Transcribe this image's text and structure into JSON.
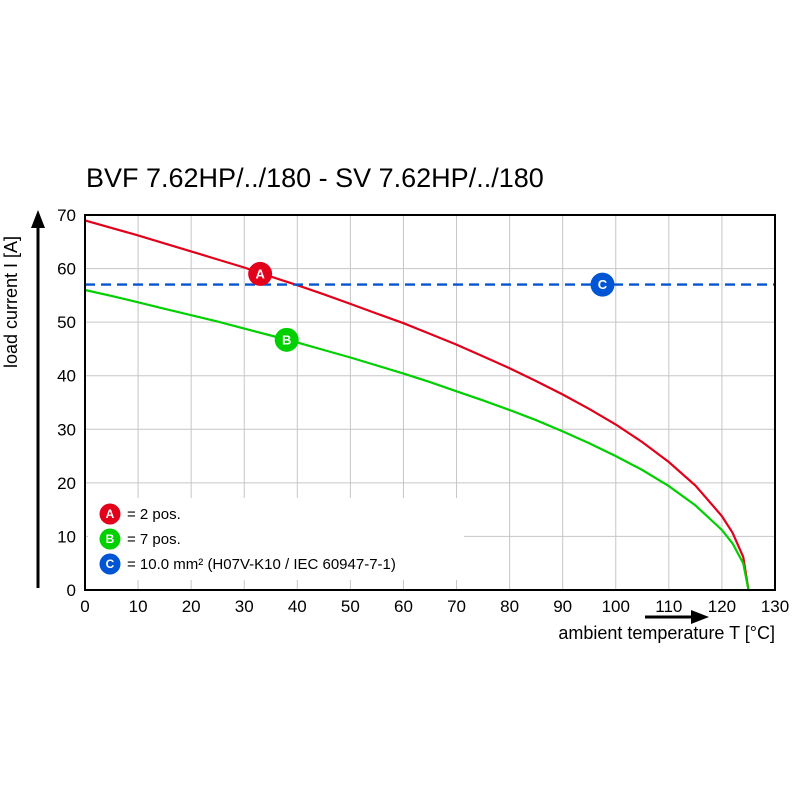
{
  "page": {
    "background": "#ffffff"
  },
  "chart_data": {
    "type": "line",
    "title": "BVF 7.62HP/../180 - SV 7.62HP/../180",
    "xlabel": "ambient temperature T [°C]",
    "ylabel": "load current I [A]",
    "xlim": [
      0,
      130
    ],
    "ylim": [
      0,
      70
    ],
    "xticks": [
      0,
      10,
      20,
      30,
      40,
      50,
      60,
      70,
      80,
      90,
      100,
      110,
      120,
      130
    ],
    "yticks": [
      0,
      10,
      20,
      30,
      40,
      50,
      60,
      70
    ],
    "grid": true,
    "legend_position": "lower-left",
    "colors": {
      "grid": "#c6c6c6",
      "frame": "#000000",
      "text": "#000000",
      "red": "#e2001a",
      "green": "#00d000",
      "blue": "#0055d4"
    },
    "series": [
      {
        "name": "A",
        "legend_label": "= 2 pos.",
        "color": "#e2001a",
        "style": "solid",
        "x": [
          0,
          5,
          10,
          15,
          20,
          25,
          30,
          35,
          40,
          45,
          50,
          55,
          60,
          65,
          70,
          75,
          80,
          85,
          90,
          95,
          100,
          105,
          110,
          115,
          120,
          122,
          124,
          125
        ],
        "y": [
          69.0,
          67.6,
          66.2,
          64.7,
          63.2,
          61.7,
          60.2,
          58.5,
          56.9,
          55.2,
          53.4,
          51.6,
          49.8,
          47.8,
          45.8,
          43.6,
          41.4,
          39.0,
          36.5,
          33.8,
          30.9,
          27.6,
          23.9,
          19.5,
          13.8,
          10.7,
          6.2,
          0.0
        ],
        "marker": {
          "label": "A",
          "x": 33,
          "y": 59
        }
      },
      {
        "name": "B",
        "legend_label": "= 7 pos.",
        "color": "#00d000",
        "style": "solid",
        "x": [
          0,
          5,
          10,
          15,
          20,
          25,
          30,
          35,
          40,
          45,
          50,
          55,
          60,
          65,
          70,
          75,
          80,
          85,
          90,
          95,
          100,
          105,
          110,
          115,
          120,
          122,
          124,
          125
        ],
        "y": [
          56.0,
          54.9,
          53.7,
          52.5,
          51.3,
          50.1,
          48.8,
          47.5,
          46.2,
          44.8,
          43.4,
          41.9,
          40.4,
          38.8,
          37.1,
          35.4,
          33.6,
          31.7,
          29.6,
          27.4,
          25.0,
          22.4,
          19.4,
          15.8,
          11.2,
          8.7,
          5.0,
          0.0
        ],
        "marker": {
          "label": "B",
          "x": 38,
          "y": 46.7
        }
      },
      {
        "name": "C",
        "legend_label": "= 10.0 mm² (H07V-K10 / IEC 60947-7-1)",
        "color": "#0055d4",
        "style": "dashed",
        "x": [
          0,
          130
        ],
        "y": [
          57,
          57
        ],
        "marker": {
          "label": "C",
          "x": 97.5,
          "y": 57
        }
      }
    ]
  }
}
